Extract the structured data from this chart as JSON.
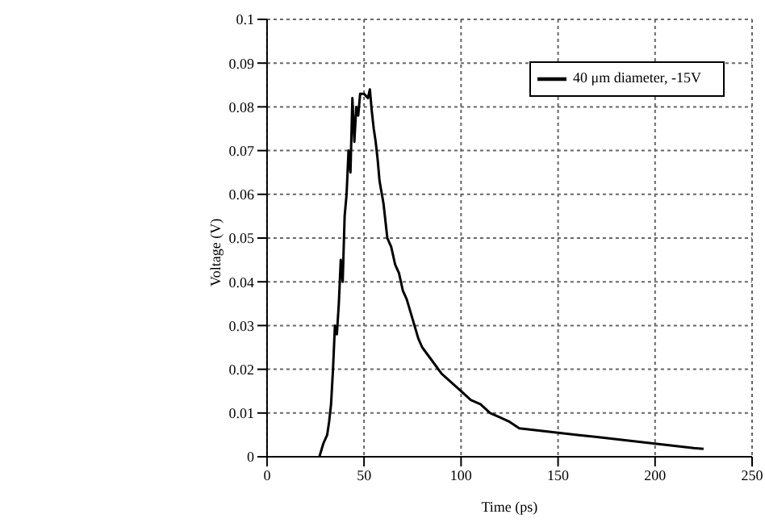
{
  "chart_data": {
    "type": "line",
    "xlabel": "Time (ps)",
    "ylabel": "Voltage (V)",
    "series": [
      {
        "name": "40 μm diameter, -15V",
        "color": "#000000",
        "x": [
          27,
          29,
          31,
          32,
          33,
          34,
          35,
          36,
          37,
          38,
          39,
          40,
          41,
          42,
          43,
          44,
          45,
          46,
          47,
          48,
          50,
          52,
          53,
          54,
          55,
          56,
          57,
          58,
          60,
          62,
          64,
          66,
          68,
          70,
          72,
          74,
          76,
          78,
          80,
          85,
          90,
          95,
          100,
          105,
          110,
          115,
          120,
          125,
          130,
          140,
          150,
          160,
          170,
          180,
          190,
          200,
          210,
          220,
          225
        ],
        "values": [
          0,
          0.003,
          0.005,
          0.008,
          0.012,
          0.02,
          0.03,
          0.028,
          0.035,
          0.045,
          0.04,
          0.055,
          0.06,
          0.07,
          0.065,
          0.082,
          0.072,
          0.08,
          0.078,
          0.083,
          0.083,
          0.082,
          0.084,
          0.079,
          0.075,
          0.072,
          0.068,
          0.063,
          0.058,
          0.05,
          0.048,
          0.044,
          0.042,
          0.038,
          0.036,
          0.033,
          0.03,
          0.027,
          0.025,
          0.022,
          0.019,
          0.017,
          0.015,
          0.013,
          0.012,
          0.01,
          0.009,
          0.008,
          0.0065,
          0.006,
          0.0055,
          0.005,
          0.0045,
          0.004,
          0.0035,
          0.003,
          0.0025,
          0.002,
          0.0018
        ]
      }
    ],
    "xlim": [
      0,
      250
    ],
    "xticks": [
      0,
      50,
      100,
      150,
      200,
      250
    ],
    "ylim": [
      0,
      0.1
    ],
    "yticks": [
      0,
      0.01,
      0.02,
      0.03,
      0.04,
      0.05,
      0.06,
      0.07,
      0.08,
      0.09,
      0.1
    ],
    "grid": true,
    "legend": "top right",
    "marker": "none",
    "line_style": "solid"
  }
}
